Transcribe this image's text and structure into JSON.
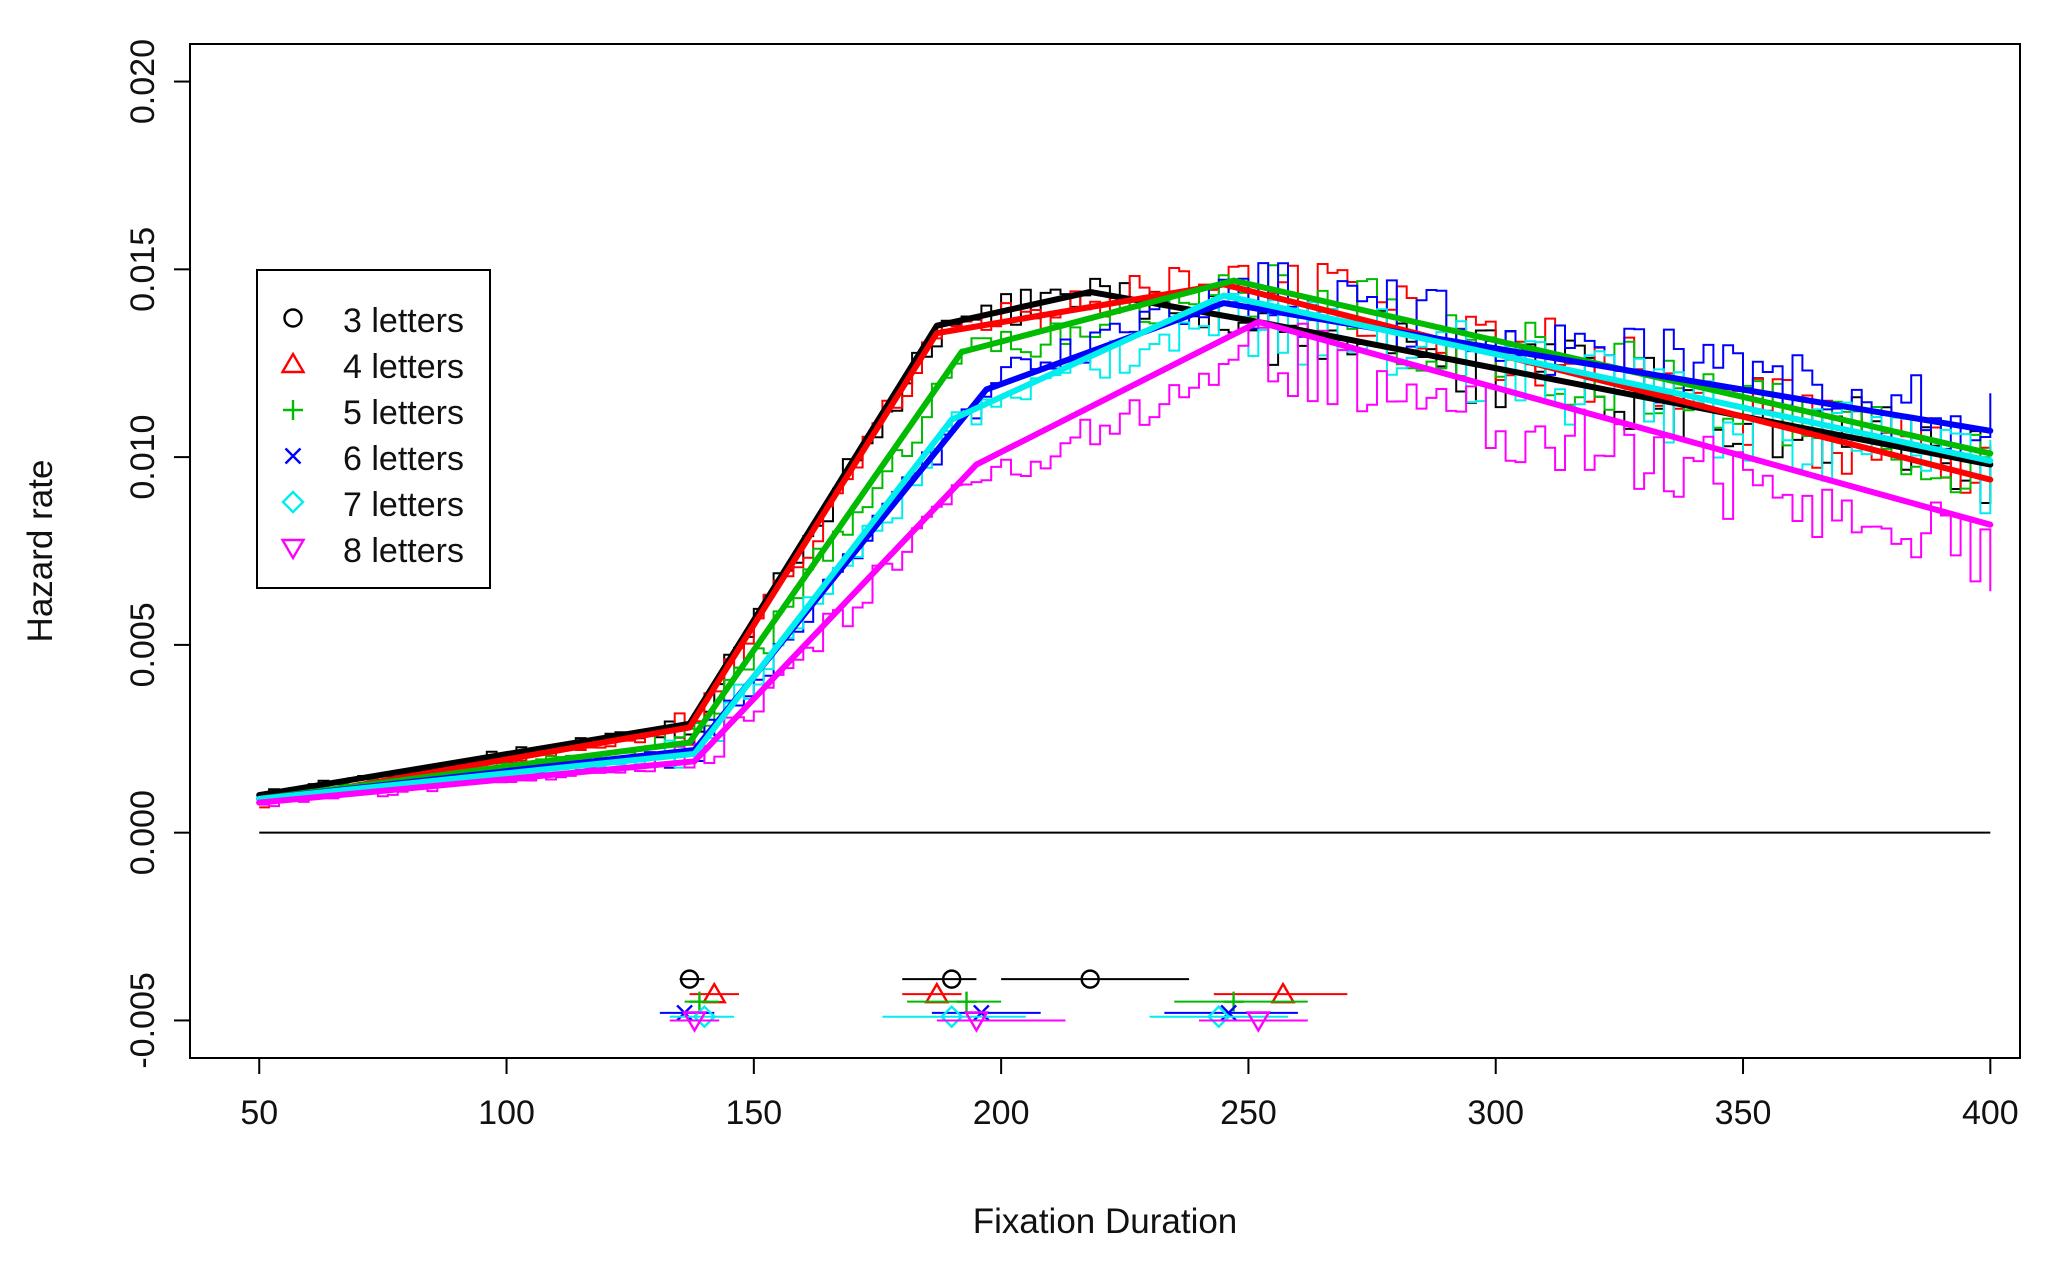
{
  "chart_data": {
    "type": "line",
    "title": "",
    "xlabel": "Fixation Duration",
    "ylabel": "Hazard rate",
    "xlim": [
      36,
      406
    ],
    "ylim": [
      -0.006,
      0.021
    ],
    "x_ticks": [
      "50",
      "100",
      "150",
      "200",
      "250",
      "300",
      "350",
      "400"
    ],
    "x_tick_values": [
      50,
      100,
      150,
      200,
      250,
      300,
      350,
      400
    ],
    "y_ticks": [
      "-0.005",
      "0.000",
      "0.005",
      "0.010",
      "0.015",
      "0.020"
    ],
    "y_tick_values": [
      -0.005,
      0.0,
      0.005,
      0.01,
      0.015,
      0.02
    ],
    "zero_line": 0.0,
    "legend_position": "left",
    "series": [
      {
        "name": "3 letters",
        "color": "#000000",
        "marker": "circle",
        "marker_glyph": "○",
        "fit": [
          [
            50,
            0.001
          ],
          [
            137,
            0.0029
          ],
          [
            187,
            0.0135
          ],
          [
            218,
            0.0144
          ],
          [
            252,
            0.0136
          ],
          [
            400,
            0.0098
          ]
        ],
        "raw_offset": 0.0,
        "breakpoints": [
          {
            "y": -0.0039,
            "center": 137,
            "ci": [
              135,
              140
            ]
          },
          {
            "y": -0.0039,
            "center": 190,
            "ci": [
              180,
              195
            ]
          },
          {
            "y": -0.0039,
            "center": 218,
            "ci": [
              200,
              238
            ]
          }
        ]
      },
      {
        "name": "4 letters",
        "color": "#ff0000",
        "marker": "triangle-up",
        "marker_glyph": "△",
        "fit": [
          [
            50,
            0.0008
          ],
          [
            137,
            0.0028
          ],
          [
            187,
            0.0133
          ],
          [
            245,
            0.0146
          ],
          [
            400,
            0.0094
          ]
        ],
        "raw_offset": 0.0002,
        "breakpoints": [
          {
            "y": -0.0043,
            "center": 142,
            "ci": [
              137,
              147
            ]
          },
          {
            "y": -0.0043,
            "center": 187,
            "ci": [
              180,
              192
            ]
          },
          {
            "y": -0.0043,
            "center": 257,
            "ci": [
              243,
              270
            ]
          }
        ]
      },
      {
        "name": "5 letters",
        "color": "#00bb00",
        "marker": "plus",
        "marker_glyph": "+",
        "fit": [
          [
            50,
            0.0009
          ],
          [
            137,
            0.0024
          ],
          [
            192,
            0.0128
          ],
          [
            247,
            0.0147
          ],
          [
            400,
            0.0101
          ]
        ],
        "raw_offset": -0.0002,
        "breakpoints": [
          {
            "y": -0.0045,
            "center": 139,
            "ci": [
              136,
              143
            ]
          },
          {
            "y": -0.0045,
            "center": 193,
            "ci": [
              181,
              200
            ]
          },
          {
            "y": -0.0045,
            "center": 247,
            "ci": [
              235,
              262
            ]
          }
        ]
      },
      {
        "name": "6 letters",
        "color": "#0000ff",
        "marker": "x",
        "marker_glyph": "×",
        "fit": [
          [
            50,
            0.0009
          ],
          [
            138,
            0.0022
          ],
          [
            197,
            0.0118
          ],
          [
            245,
            0.0141
          ],
          [
            400,
            0.0107
          ]
        ],
        "raw_offset": 0.0003,
        "breakpoints": [
          {
            "y": -0.0048,
            "center": 136,
            "ci": [
              131,
              142
            ]
          },
          {
            "y": -0.0048,
            "center": 196,
            "ci": [
              186,
              208
            ]
          },
          {
            "y": -0.0048,
            "center": 246,
            "ci": [
              233,
              260
            ]
          }
        ]
      },
      {
        "name": "7 letters",
        "color": "#00eeee",
        "marker": "diamond",
        "marker_glyph": "◇",
        "fit": [
          [
            50,
            0.0009
          ],
          [
            138,
            0.0021
          ],
          [
            190,
            0.011
          ],
          [
            245,
            0.0143
          ],
          [
            400,
            0.0099
          ]
        ],
        "raw_offset": -0.0004,
        "breakpoints": [
          {
            "y": -0.0049,
            "center": 140,
            "ci": [
              133,
              146
            ]
          },
          {
            "y": -0.0049,
            "center": 190,
            "ci": [
              176,
              205
            ]
          },
          {
            "y": -0.0049,
            "center": 244,
            "ci": [
              230,
              258
            ]
          }
        ]
      },
      {
        "name": "8 letters",
        "color": "#ff00ff",
        "marker": "triangle-down",
        "marker_glyph": "▽",
        "fit": [
          [
            50,
            0.0008
          ],
          [
            138,
            0.0019
          ],
          [
            195,
            0.0098
          ],
          [
            252,
            0.0136
          ],
          [
            400,
            0.0082
          ]
        ],
        "raw_offset": -0.0008,
        "breakpoints": [
          {
            "y": -0.005,
            "center": 138,
            "ci": [
              133,
              143
            ]
          },
          {
            "y": -0.005,
            "center": 195,
            "ci": [
              187,
              213
            ]
          },
          {
            "y": -0.005,
            "center": 252,
            "ci": [
              240,
              262
            ]
          }
        ]
      }
    ]
  }
}
